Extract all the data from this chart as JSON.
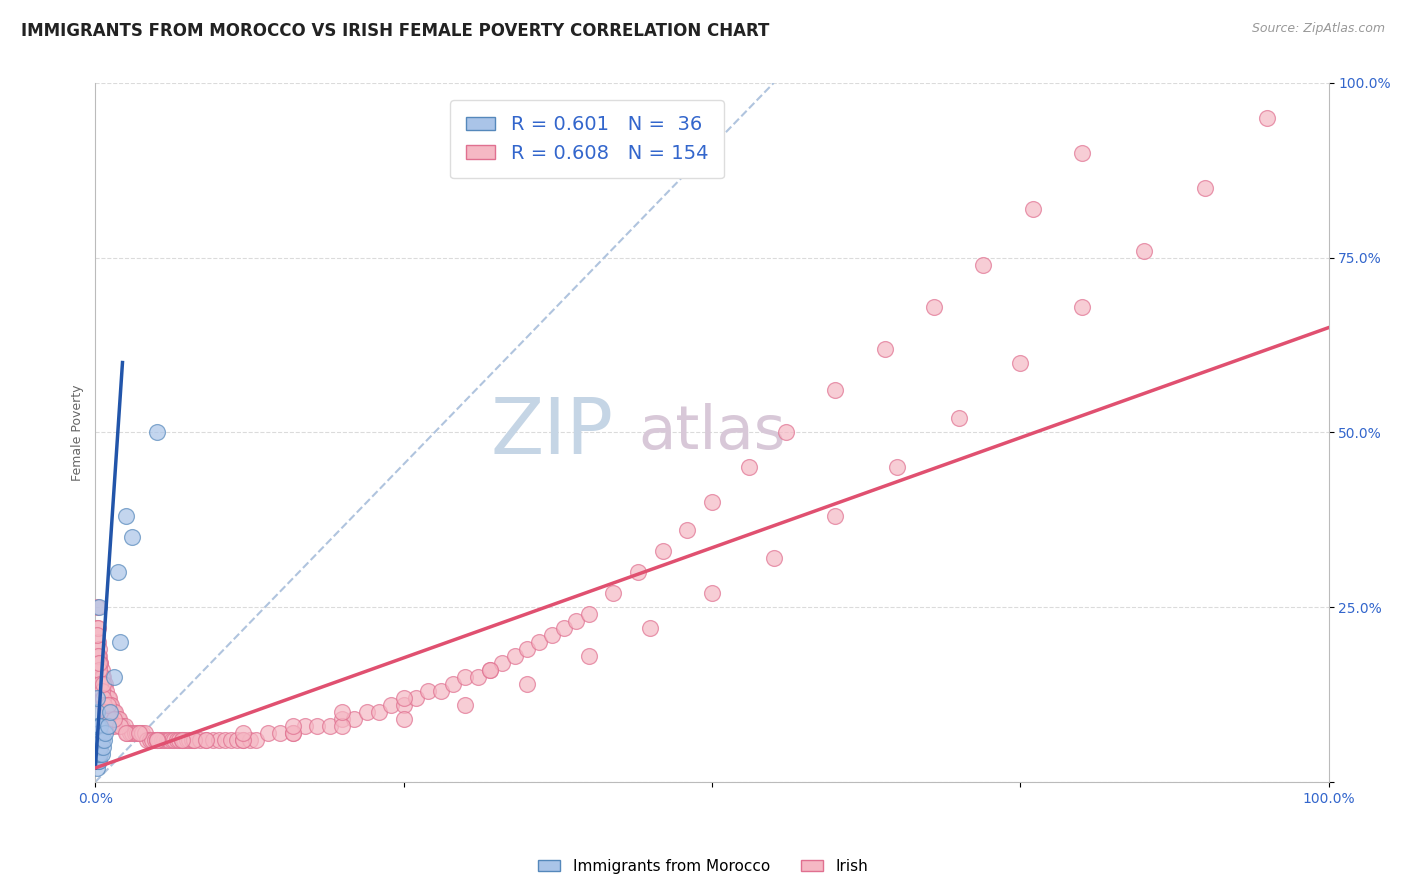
{
  "title": "IMMIGRANTS FROM MOROCCO VS IRISH FEMALE POVERTY CORRELATION CHART",
  "source_text": "Source: ZipAtlas.com",
  "ylabel": "Female Poverty",
  "watermark_zip": "ZIP",
  "watermark_atlas": "atlas",
  "xlim": [
    0.0,
    1.0
  ],
  "ylim": [
    0.0,
    1.0
  ],
  "grid_color": "#cccccc",
  "background_color": "#ffffff",
  "morocco_color": "#aac4e8",
  "irish_color": "#f5b8c4",
  "morocco_edge_color": "#5588bb",
  "irish_edge_color": "#e07090",
  "morocco_R": 0.601,
  "morocco_N": 36,
  "irish_R": 0.608,
  "irish_N": 154,
  "legend_color": "#3366cc",
  "title_fontsize": 12,
  "axis_label_fontsize": 9,
  "tick_label_fontsize": 10,
  "legend_fontsize": 14,
  "watermark_fontsize_zip": 56,
  "watermark_fontsize_atlas": 44,
  "watermark_color_zip": "#c5d5e5",
  "watermark_color_atlas": "#d8c8d8",
  "morocco_scatter_x": [
    0.001,
    0.001,
    0.001,
    0.001,
    0.001,
    0.001,
    0.001,
    0.001,
    0.001,
    0.002,
    0.002,
    0.002,
    0.002,
    0.002,
    0.003,
    0.003,
    0.003,
    0.003,
    0.003,
    0.004,
    0.004,
    0.004,
    0.004,
    0.005,
    0.005,
    0.006,
    0.007,
    0.008,
    0.01,
    0.012,
    0.015,
    0.018,
    0.02,
    0.025,
    0.03,
    0.05
  ],
  "morocco_scatter_y": [
    0.02,
    0.03,
    0.04,
    0.05,
    0.06,
    0.07,
    0.08,
    0.1,
    0.12,
    0.03,
    0.04,
    0.05,
    0.06,
    0.08,
    0.03,
    0.04,
    0.05,
    0.07,
    0.25,
    0.04,
    0.05,
    0.06,
    0.08,
    0.04,
    0.06,
    0.05,
    0.06,
    0.07,
    0.08,
    0.1,
    0.15,
    0.3,
    0.2,
    0.38,
    0.35,
    0.5
  ],
  "irish_scatter_x": [
    0.001,
    0.002,
    0.003,
    0.004,
    0.005,
    0.006,
    0.007,
    0.008,
    0.009,
    0.01,
    0.011,
    0.012,
    0.013,
    0.014,
    0.015,
    0.016,
    0.017,
    0.018,
    0.019,
    0.02,
    0.022,
    0.024,
    0.026,
    0.028,
    0.03,
    0.032,
    0.034,
    0.036,
    0.038,
    0.04,
    0.042,
    0.044,
    0.046,
    0.048,
    0.05,
    0.052,
    0.054,
    0.056,
    0.058,
    0.06,
    0.062,
    0.064,
    0.066,
    0.068,
    0.07,
    0.072,
    0.074,
    0.076,
    0.078,
    0.08,
    0.085,
    0.09,
    0.095,
    0.1,
    0.105,
    0.11,
    0.115,
    0.12,
    0.125,
    0.13,
    0.14,
    0.15,
    0.16,
    0.17,
    0.18,
    0.19,
    0.2,
    0.21,
    0.22,
    0.23,
    0.24,
    0.25,
    0.26,
    0.27,
    0.28,
    0.29,
    0.3,
    0.31,
    0.32,
    0.33,
    0.34,
    0.35,
    0.36,
    0.37,
    0.38,
    0.39,
    0.4,
    0.42,
    0.44,
    0.46,
    0.48,
    0.5,
    0.53,
    0.56,
    0.6,
    0.64,
    0.68,
    0.72,
    0.76,
    0.8,
    0.001,
    0.002,
    0.003,
    0.004,
    0.005,
    0.001,
    0.002,
    0.003,
    0.004,
    0.005,
    0.006,
    0.007,
    0.008,
    0.009,
    0.01,
    0.011,
    0.012,
    0.013,
    0.015,
    0.02,
    0.05,
    0.08,
    0.12,
    0.16,
    0.2,
    0.25,
    0.3,
    0.35,
    0.4,
    0.45,
    0.5,
    0.55,
    0.6,
    0.65,
    0.7,
    0.75,
    0.8,
    0.85,
    0.9,
    0.95,
    0.003,
    0.006,
    0.01,
    0.015,
    0.025,
    0.035,
    0.05,
    0.07,
    0.09,
    0.12,
    0.16,
    0.2,
    0.25,
    0.32
  ],
  "irish_scatter_y": [
    0.22,
    0.2,
    0.18,
    0.17,
    0.16,
    0.15,
    0.14,
    0.14,
    0.13,
    0.12,
    0.12,
    0.11,
    0.11,
    0.1,
    0.1,
    0.1,
    0.09,
    0.09,
    0.09,
    0.08,
    0.08,
    0.08,
    0.07,
    0.07,
    0.07,
    0.07,
    0.07,
    0.07,
    0.07,
    0.07,
    0.06,
    0.06,
    0.06,
    0.06,
    0.06,
    0.06,
    0.06,
    0.06,
    0.06,
    0.06,
    0.06,
    0.06,
    0.06,
    0.06,
    0.06,
    0.06,
    0.06,
    0.06,
    0.06,
    0.06,
    0.06,
    0.06,
    0.06,
    0.06,
    0.06,
    0.06,
    0.06,
    0.06,
    0.06,
    0.06,
    0.07,
    0.07,
    0.07,
    0.08,
    0.08,
    0.08,
    0.09,
    0.09,
    0.1,
    0.1,
    0.11,
    0.11,
    0.12,
    0.13,
    0.13,
    0.14,
    0.15,
    0.15,
    0.16,
    0.17,
    0.18,
    0.19,
    0.2,
    0.21,
    0.22,
    0.23,
    0.24,
    0.27,
    0.3,
    0.33,
    0.36,
    0.4,
    0.45,
    0.5,
    0.56,
    0.62,
    0.68,
    0.74,
    0.82,
    0.9,
    0.25,
    0.22,
    0.19,
    0.17,
    0.15,
    0.21,
    0.18,
    0.16,
    0.14,
    0.13,
    0.12,
    0.11,
    0.1,
    0.1,
    0.09,
    0.09,
    0.09,
    0.08,
    0.08,
    0.08,
    0.06,
    0.06,
    0.06,
    0.07,
    0.08,
    0.09,
    0.11,
    0.14,
    0.18,
    0.22,
    0.27,
    0.32,
    0.38,
    0.45,
    0.52,
    0.6,
    0.68,
    0.76,
    0.85,
    0.95,
    0.17,
    0.14,
    0.11,
    0.09,
    0.07,
    0.07,
    0.06,
    0.06,
    0.06,
    0.07,
    0.08,
    0.1,
    0.12,
    0.16
  ],
  "morocco_line_x": [
    0.0,
    0.022
  ],
  "morocco_line_y": [
    0.02,
    0.6
  ],
  "irish_line_x": [
    0.0,
    1.0
  ],
  "irish_line_y": [
    0.02,
    0.65
  ],
  "ref_line_x": [
    0.0,
    0.55
  ],
  "ref_line_y": [
    0.0,
    1.0
  ]
}
